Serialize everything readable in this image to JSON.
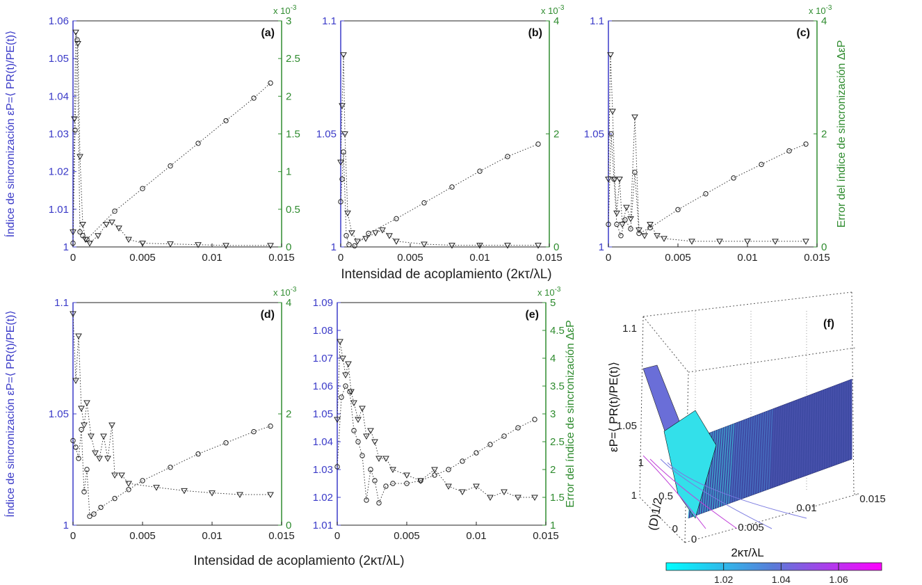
{
  "figure": {
    "shared_xlabel_top": "Intensidad de acoplamiento (2κτ/λL)",
    "shared_xlabel_bottom": "Intensidad de acoplamiento (2κτ/λL)",
    "colors": {
      "left_axis": "#3a3ac8",
      "right_axis": "#2e8b2e",
      "markers": "#222222"
    }
  },
  "chart_data": [
    {
      "id": "a",
      "type": "scatter",
      "panel_label": "(a)",
      "ylabel": "Índice de sincronización εP=⟨ PR(t)/PE(t)⟩",
      "ylabel_right": "",
      "xticks": [
        "0",
        "0.005",
        "0.01",
        "0.015"
      ],
      "yticks_left": [
        "1",
        "1.01",
        "1.02",
        "1.03",
        "1.04",
        "1.05",
        "1.06"
      ],
      "yticks_right": [
        "0",
        "0.5",
        "1",
        "1.5",
        "2",
        "2.5",
        "3"
      ],
      "right_exp": "x 10-3",
      "xlim": [
        0,
        0.015
      ],
      "ylim_left": [
        1,
        1.06
      ],
      "ylim_right": [
        0,
        0.003
      ],
      "series": [
        {
          "marker": "circle",
          "axis": "left",
          "x": [
            0,
            0.00015,
            0.0003,
            0.0005,
            0.0007,
            0.001,
            0.003,
            0.005,
            0.007,
            0.009,
            0.011,
            0.013,
            0.0142
          ],
          "y": [
            1.001,
            1.031,
            1.055,
            1.004,
            1.003,
            1.002,
            1.0095,
            1.0155,
            1.0215,
            1.0275,
            1.0335,
            1.0395,
            1.0435
          ]
        },
        {
          "marker": "triangle",
          "axis": "right",
          "x": [
            0,
            0.0001,
            0.0002,
            0.00035,
            0.0005,
            0.0007,
            0.0009,
            0.0012,
            0.0018,
            0.0024,
            0.0028,
            0.0033,
            0.004,
            0.005,
            0.007,
            0.009,
            0.011,
            0.0142
          ],
          "y": [
            0.0002,
            0.0017,
            0.00285,
            0.0027,
            0.0012,
            0.0003,
            0.0001,
            5e-05,
            0.00015,
            0.0003,
            0.00033,
            0.00025,
            0.0001,
            5e-05,
            4e-05,
            3e-05,
            2e-05,
            2e-05
          ]
        }
      ]
    },
    {
      "id": "b",
      "type": "scatter",
      "panel_label": "(b)",
      "ylabel": "",
      "ylabel_right": "",
      "xticks": [
        "0",
        "0.005",
        "0.01",
        "0.015"
      ],
      "yticks_left": [
        "1",
        "1.05",
        "1.1"
      ],
      "yticks_right": [
        "0",
        "2",
        "4"
      ],
      "right_exp": "x 10-3",
      "xlim": [
        0,
        0.015
      ],
      "ylim_left": [
        1,
        1.1
      ],
      "ylim_right": [
        0,
        0.004
      ],
      "series": [
        {
          "marker": "circle",
          "axis": "left",
          "x": [
            0,
            0.0001,
            0.0002,
            0.0004,
            0.0006,
            0.001,
            0.002,
            0.004,
            0.006,
            0.008,
            0.01,
            0.012,
            0.0142
          ],
          "y": [
            1.02,
            1.03,
            1.042,
            1.005,
            1.001,
            1.0005,
            1.006,
            1.0125,
            1.0195,
            1.0265,
            1.0335,
            1.04,
            1.0455
          ]
        },
        {
          "marker": "triangle",
          "axis": "right",
          "x": [
            0,
            0.0001,
            0.0002,
            0.0003,
            0.0005,
            0.0008,
            0.0012,
            0.0018,
            0.0025,
            0.003,
            0.0035,
            0.004,
            0.006,
            0.008,
            0.01,
            0.012,
            0.0142
          ],
          "y": [
            0.0015,
            0.0025,
            0.0034,
            0.002,
            0.0006,
            0.00025,
            0.0001,
            0.00015,
            0.00025,
            0.0003,
            0.0002,
            0.0001,
            5e-05,
            3e-05,
            3e-05,
            3e-05,
            3e-05
          ]
        }
      ]
    },
    {
      "id": "c",
      "type": "scatter",
      "panel_label": "(c)",
      "ylabel": "",
      "ylabel_right": "Error del índice de sincronización ΔεP",
      "xticks": [
        "0",
        "0.005",
        "0.01",
        "0.015"
      ],
      "yticks_left": [
        "1",
        "1.05",
        "1.1"
      ],
      "yticks_right": [
        "0",
        "2",
        "4"
      ],
      "right_exp": "x 10-3",
      "xlim": [
        0,
        0.015
      ],
      "ylim_left": [
        1,
        1.1
      ],
      "ylim_right": [
        0,
        0.004
      ],
      "series": [
        {
          "marker": "circle",
          "axis": "left",
          "x": [
            0,
            0.0002,
            0.0004,
            0.0006,
            0.0009,
            0.0012,
            0.0016,
            0.0019,
            0.0022,
            0.003,
            0.005,
            0.007,
            0.009,
            0.011,
            0.013,
            0.0142
          ],
          "y": [
            1.01,
            1.05,
            1.03,
            1.01,
            1.005,
            1.012,
            1.008,
            1.033,
            1.006,
            1.0085,
            1.0165,
            1.0235,
            1.0305,
            1.0365,
            1.0425,
            1.0455
          ]
        },
        {
          "marker": "triangle",
          "axis": "right",
          "x": [
            0,
            0.00015,
            0.0003,
            0.00045,
            0.0006,
            0.0008,
            0.001,
            0.0013,
            0.0016,
            0.0019,
            0.0022,
            0.0026,
            0.003,
            0.0035,
            0.004,
            0.006,
            0.008,
            0.01,
            0.012,
            0.0142
          ],
          "y": [
            0.0012,
            0.0034,
            0.0024,
            0.0012,
            0.0006,
            0.0012,
            0.0004,
            0.0007,
            0.0005,
            0.0023,
            0.0003,
            0.0002,
            0.0004,
            0.0002,
            0.00015,
            0.0001,
            0.0001,
            0.0001,
            0.0001,
            0.0001
          ]
        }
      ]
    },
    {
      "id": "d",
      "type": "scatter",
      "panel_label": "(d)",
      "ylabel": "Índice de sincronización εP=⟨ PR(t)/PE(t)⟩",
      "ylabel_right": "",
      "xticks": [
        "0",
        "0.005",
        "0.01",
        "0.015"
      ],
      "yticks_left": [
        "1",
        "1.05",
        "1.1"
      ],
      "yticks_right": [
        "0",
        "2",
        "4"
      ],
      "right_exp": "x 10-3",
      "xlim": [
        0,
        0.015
      ],
      "ylim_left": [
        1,
        1.1
      ],
      "ylim_right": [
        0,
        0.004
      ],
      "series": [
        {
          "marker": "circle",
          "axis": "left",
          "x": [
            0,
            0.0002,
            0.0004,
            0.0006,
            0.0008,
            0.001,
            0.0012,
            0.0015,
            0.002,
            0.003,
            0.004,
            0.005,
            0.007,
            0.009,
            0.011,
            0.013,
            0.0142
          ],
          "y": [
            1.038,
            1.035,
            1.03,
            1.043,
            1.015,
            1.025,
            1.004,
            1.005,
            1.008,
            1.012,
            1.016,
            1.02,
            1.026,
            1.032,
            1.037,
            1.042,
            1.0445
          ]
        },
        {
          "marker": "triangle",
          "axis": "right",
          "x": [
            0,
            0.0002,
            0.0004,
            0.0006,
            0.0008,
            0.001,
            0.0013,
            0.0016,
            0.0019,
            0.0022,
            0.0025,
            0.0028,
            0.003,
            0.0035,
            0.004,
            0.006,
            0.008,
            0.01,
            0.012,
            0.0142
          ],
          "y": [
            0.0038,
            0.0026,
            0.0034,
            0.0021,
            0.0018,
            0.0022,
            0.0016,
            0.0013,
            0.0012,
            0.0016,
            0.0012,
            0.0018,
            0.0009,
            0.0009,
            0.00075,
            0.00068,
            0.00062,
            0.00058,
            0.00055,
            0.00055
          ]
        }
      ]
    },
    {
      "id": "e",
      "type": "scatter",
      "panel_label": "(e)",
      "ylabel": "",
      "ylabel_right": "Error del índice de sincronización ΔεP",
      "xticks": [
        "0",
        "0.005",
        "0.01",
        "0.015"
      ],
      "yticks_left": [
        "1.01",
        "1.02",
        "1.03",
        "1.04",
        "1.05",
        "1.06",
        "1.07",
        "1.08",
        "1.09"
      ],
      "yticks_right": [
        "1",
        "1.5",
        "2",
        "2.5",
        "3",
        "3.5",
        "4",
        "4.5",
        "5"
      ],
      "right_exp": "x 10-3",
      "xlim": [
        0,
        0.015
      ],
      "ylim_left": [
        1.01,
        1.09
      ],
      "ylim_right": [
        0.001,
        0.005
      ],
      "series": [
        {
          "marker": "circle",
          "axis": "left",
          "x": [
            0,
            0.0003,
            0.0006,
            0.0009,
            0.0012,
            0.0015,
            0.0018,
            0.0021,
            0.0024,
            0.0027,
            0.003,
            0.0035,
            0.004,
            0.005,
            0.006,
            0.007,
            0.008,
            0.009,
            0.01,
            0.011,
            0.012,
            0.013,
            0.0142
          ],
          "y": [
            1.031,
            1.056,
            1.06,
            1.058,
            1.044,
            1.04,
            1.035,
            1.019,
            1.03,
            1.026,
            1.018,
            1.024,
            1.025,
            1.025,
            1.026,
            1.028,
            1.03,
            1.033,
            1.036,
            1.039,
            1.042,
            1.045,
            1.048
          ]
        },
        {
          "marker": "triangle",
          "axis": "right",
          "x": [
            0,
            0.0002,
            0.0004,
            0.0006,
            0.0008,
            0.001,
            0.0012,
            0.0015,
            0.0018,
            0.0021,
            0.0024,
            0.0027,
            0.003,
            0.0035,
            0.004,
            0.005,
            0.006,
            0.007,
            0.008,
            0.009,
            0.01,
            0.011,
            0.012,
            0.013,
            0.0142
          ],
          "y": [
            0.0029,
            0.0043,
            0.004,
            0.0037,
            0.0039,
            0.0034,
            0.0032,
            0.0029,
            0.0031,
            0.0026,
            0.0027,
            0.0025,
            0.0022,
            0.0022,
            0.002,
            0.0019,
            0.0018,
            0.002,
            0.0017,
            0.0016,
            0.0017,
            0.0015,
            0.0016,
            0.0015,
            0.0015
          ]
        }
      ]
    },
    {
      "id": "f",
      "type": "surface",
      "panel_label": "(f)",
      "zlabel": "εP=⟨ PR(t)/PE(t)⟩",
      "xlabel": "2κτ/λL",
      "ylabel": "(D)1/2",
      "zticks": [
        "1",
        "1.05",
        "1.1"
      ],
      "xticks": [
        "0",
        "0.005",
        "0.01",
        "0.015"
      ],
      "yticks": [
        "0",
        "0.5",
        "1"
      ],
      "colorbar_ticks": [
        "1.02",
        "1.04",
        "1.06"
      ],
      "colorbar_range": [
        1.0,
        1.075
      ],
      "colormap": [
        "#00ffff",
        "#ff00ff"
      ]
    }
  ]
}
